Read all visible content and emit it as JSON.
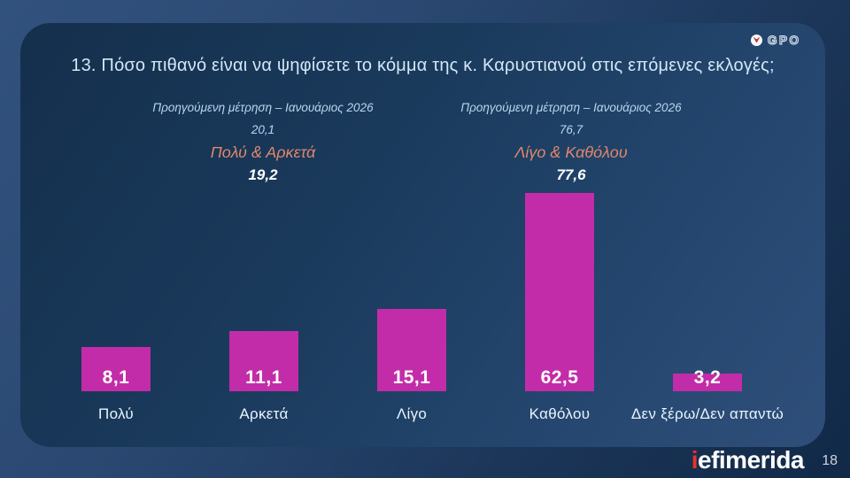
{
  "slide": {
    "title": "13. Πόσο πιθανό είναι να ψηφίσετε το κόμμα της κ. Καρυστιανού στις επόμενες εκλογές;",
    "page_number": "18"
  },
  "logos": {
    "gpo_text": "GPO",
    "iefimerida_i": "i",
    "iefimerida_rest": "efimerida"
  },
  "annotations": {
    "left": {
      "previous_label": "Προηγούμενη μέτρηση – Ιανουάριος 2026",
      "previous_value": "20,1",
      "group_label": "Πολύ & Αρκετά",
      "group_value": "19,2"
    },
    "right": {
      "previous_label": "Προηγούμενη μέτρηση – Ιανουάριος 2026",
      "previous_value": "76,7",
      "group_label": "Λίγο & Καθόλου",
      "group_value": "77,6"
    }
  },
  "chart_data": {
    "type": "bar",
    "title": "13. Πόσο πιθανό είναι να ψηφίσετε το κόμμα της κ. Καρυστιανού στις επόμενες εκλογές;",
    "categories": [
      "Πολύ",
      "Αρκετά",
      "Λίγο",
      "Καθόλου",
      "Δεν ξέρω/Δεν απαντώ"
    ],
    "values": [
      8.1,
      11.1,
      15.1,
      62.5,
      3.2
    ],
    "values_display": [
      "8,1",
      "11,1",
      "15,1",
      "62,5",
      "3,2"
    ],
    "bar_color": "#c32ca8",
    "value_label_position": "inside-bottom",
    "grid": false,
    "legend": false,
    "axis_lines": false,
    "tall_bar_clipped_at_plot_top": true,
    "grouped_summaries": [
      {
        "label": "Πολύ & Αρκετά",
        "current": 19.2,
        "previous": 20.1,
        "previous_period": "Ιανουάριος 2026"
      },
      {
        "label": "Λίγο & Καθόλου",
        "current": 77.6,
        "previous": 76.7,
        "previous_period": "Ιανουάριος 2026"
      }
    ]
  },
  "colors": {
    "bar": "#c32ca8",
    "accent_orange": "#e0876c",
    "annotation_blue": "#b9d7f0",
    "title_text": "#d3e7f6",
    "logo_red": "#e8332a"
  }
}
